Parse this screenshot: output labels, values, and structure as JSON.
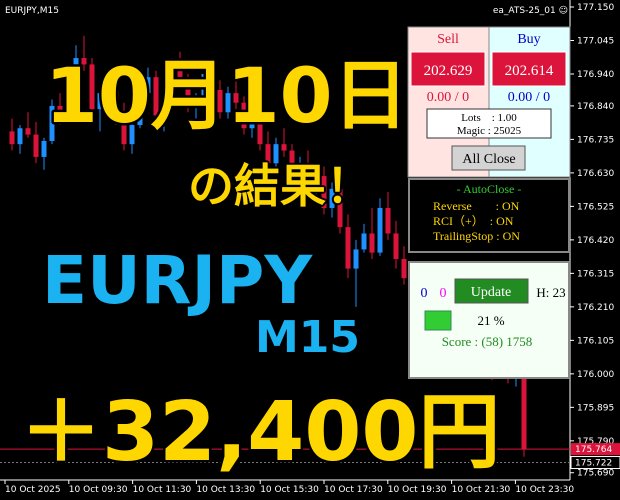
{
  "header": {
    "symbol": "EURJPY,M15",
    "ea": "ea_ATS-25_01 ☺"
  },
  "chart": {
    "price_ticks": [
      {
        "value": 177.15,
        "label": "177.150"
      },
      {
        "value": 177.045,
        "label": "177.045"
      },
      {
        "value": 176.94,
        "label": "176.940"
      },
      {
        "value": 176.84,
        "label": "176.840"
      },
      {
        "value": 176.735,
        "label": "176.735"
      },
      {
        "value": 176.63,
        "label": "176.630"
      },
      {
        "value": 176.525,
        "label": "176.525"
      },
      {
        "value": 176.42,
        "label": "176.420"
      },
      {
        "value": 176.315,
        "label": "176.315"
      },
      {
        "value": 176.21,
        "label": "176.210"
      },
      {
        "value": 176.105,
        "label": "176.105"
      },
      {
        "value": 176.0,
        "label": "176.000"
      },
      {
        "value": 175.895,
        "label": "175.895"
      },
      {
        "value": 175.79,
        "label": "175.790"
      },
      {
        "value": 175.69,
        "label": "175.690"
      }
    ],
    "price_labels": [
      {
        "value": 175.764,
        "label": "175.764"
      },
      {
        "value": 175.722,
        "label": "175.722"
      }
    ],
    "time_labels": [
      "10 Oct 2025",
      "10 Oct 09:30",
      "10 Oct 11:30",
      "10 Oct 13:30",
      "10 Oct 15:30",
      "10 Oct 17:30",
      "10 Oct 19:30",
      "10 Oct 21:30",
      "10 Oct 23:30"
    ],
    "candles": [
      [
        176.76,
        176.8,
        176.7,
        176.72
      ],
      [
        176.72,
        176.78,
        176.69,
        176.77
      ],
      [
        176.77,
        176.82,
        176.74,
        176.75
      ],
      [
        176.75,
        176.79,
        176.66,
        176.68
      ],
      [
        176.68,
        176.74,
        176.64,
        176.73
      ],
      [
        176.73,
        176.86,
        176.72,
        176.84
      ],
      [
        176.84,
        176.88,
        176.78,
        176.8
      ],
      [
        176.8,
        176.96,
        176.79,
        176.94
      ],
      [
        176.94,
        177.03,
        176.9,
        176.99
      ],
      [
        176.99,
        177.06,
        176.95,
        176.97
      ],
      [
        176.97,
        176.99,
        176.8,
        176.83
      ],
      [
        176.83,
        176.9,
        176.76,
        176.88
      ],
      [
        176.88,
        176.95,
        176.86,
        176.92
      ],
      [
        176.92,
        176.94,
        176.78,
        176.8
      ],
      [
        176.8,
        176.85,
        176.7,
        176.72
      ],
      [
        176.72,
        176.8,
        176.69,
        176.78
      ],
      [
        176.78,
        176.9,
        176.77,
        176.88
      ],
      [
        176.88,
        176.96,
        176.85,
        176.93
      ],
      [
        176.93,
        176.95,
        176.78,
        176.81
      ],
      [
        176.81,
        176.87,
        176.76,
        176.85
      ],
      [
        176.85,
        176.99,
        176.84,
        176.97
      ],
      [
        176.97,
        177.01,
        176.9,
        176.92
      ],
      [
        176.92,
        176.94,
        176.82,
        176.84
      ],
      [
        176.84,
        176.88,
        176.79,
        176.86
      ],
      [
        176.86,
        176.96,
        176.85,
        176.94
      ],
      [
        176.94,
        176.98,
        176.87,
        176.89
      ],
      [
        176.89,
        176.92,
        176.8,
        176.82
      ],
      [
        176.82,
        176.9,
        176.8,
        176.88
      ],
      [
        176.88,
        176.93,
        176.83,
        176.85
      ],
      [
        176.85,
        176.87,
        176.75,
        176.77
      ],
      [
        176.77,
        176.83,
        176.74,
        176.81
      ],
      [
        176.81,
        176.82,
        176.7,
        176.72
      ],
      [
        176.72,
        176.76,
        176.64,
        176.66
      ],
      [
        176.66,
        176.74,
        176.65,
        176.72
      ],
      [
        176.72,
        176.77,
        176.68,
        176.7
      ],
      [
        176.7,
        176.72,
        176.6,
        176.62
      ],
      [
        176.62,
        176.68,
        176.58,
        176.66
      ],
      [
        176.66,
        176.7,
        176.56,
        176.58
      ],
      [
        176.58,
        176.64,
        176.54,
        176.62
      ],
      [
        176.62,
        176.65,
        176.5,
        176.52
      ],
      [
        176.52,
        176.6,
        176.49,
        176.58
      ],
      [
        176.58,
        176.61,
        176.44,
        176.46
      ],
      [
        176.46,
        176.5,
        176.3,
        176.33
      ],
      [
        176.33,
        176.42,
        176.21,
        176.39
      ],
      [
        176.39,
        176.47,
        176.38,
        176.44
      ],
      [
        176.44,
        176.52,
        176.36,
        176.38
      ],
      [
        176.38,
        176.55,
        176.37,
        176.52
      ],
      [
        176.52,
        176.57,
        176.42,
        176.44
      ],
      [
        176.44,
        176.48,
        176.33,
        176.36
      ],
      [
        176.36,
        176.4,
        176.28,
        176.3
      ],
      [
        176.3,
        176.34,
        176.22,
        176.25
      ],
      [
        176.25,
        176.29,
        176.18,
        176.2
      ],
      [
        176.2,
        176.26,
        176.15,
        176.23
      ],
      [
        176.23,
        176.27,
        176.16,
        176.18
      ],
      [
        176.18,
        176.22,
        176.1,
        176.12
      ],
      [
        176.12,
        176.17,
        176.08,
        176.15
      ],
      [
        176.15,
        176.19,
        176.09,
        176.11
      ],
      [
        176.11,
        176.14,
        176.03,
        176.05
      ],
      [
        176.05,
        176.11,
        176.02,
        176.08
      ],
      [
        176.08,
        176.12,
        176.01,
        176.03
      ],
      [
        176.03,
        176.07,
        175.98,
        176.01
      ],
      [
        176.01,
        176.06,
        175.99,
        176.04
      ],
      [
        176.04,
        176.06,
        175.97,
        175.99
      ],
      [
        175.99,
        176.02,
        175.96,
        176.0
      ],
      [
        176.0,
        176.01,
        175.74,
        175.764
      ]
    ]
  },
  "overlay": {
    "date": "10月10日",
    "result": "の結果！",
    "pair": "EURJPY",
    "timeframe": "M15",
    "profit": "＋32,400円"
  },
  "trade_panel": {
    "sell": "Sell",
    "buy": "Buy",
    "sell_price": "202.629",
    "buy_price": "202.614",
    "sell_pl": "0.00 / 0",
    "buy_pl": "0.00 / 0",
    "lots": "Lots　: 1.00",
    "magic": "Magic : 25025",
    "close_all": "All Close"
  },
  "autoclose_panel": {
    "title": "- AutoClose -",
    "rows": [
      "Reverse　　: ON",
      "RCI（+）　: ON",
      "TrailingStop : ON"
    ]
  },
  "status_panel": {
    "count_a": "0",
    "count_b": "0",
    "update": "Update",
    "hours": "H: 23",
    "percent": "21 %",
    "score": "Score : (58) 1758"
  }
}
